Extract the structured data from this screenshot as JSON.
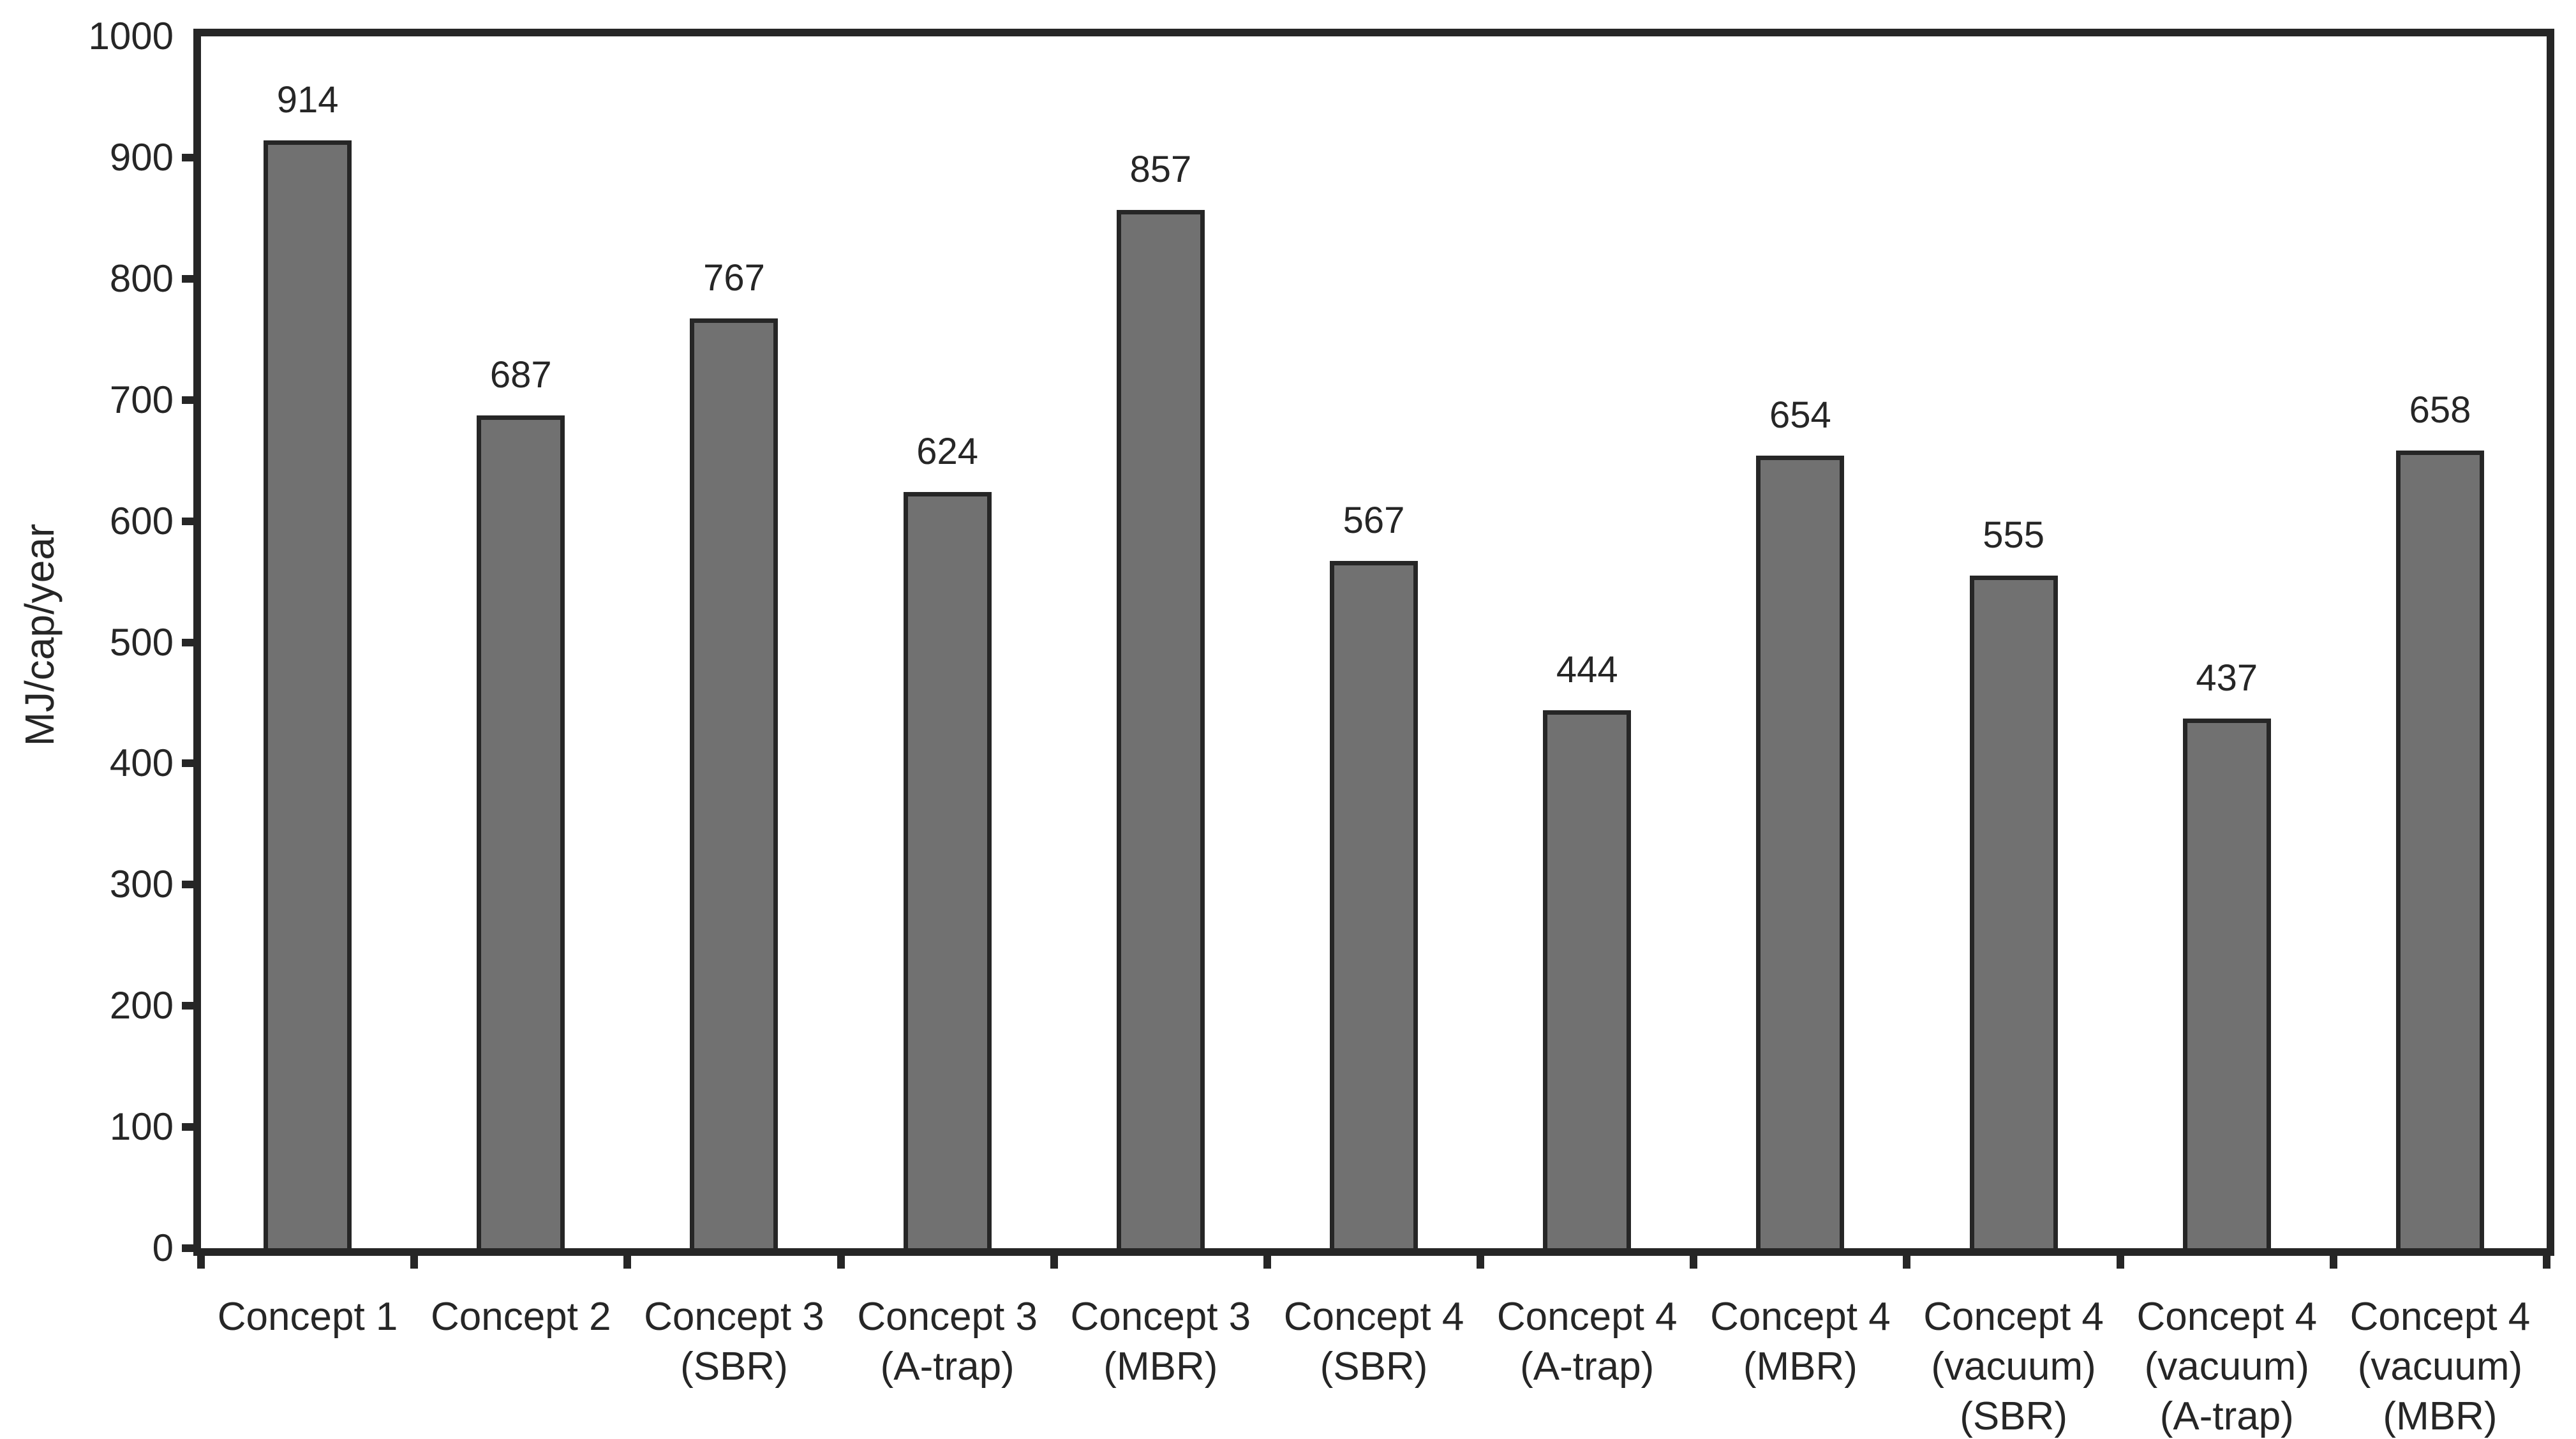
{
  "chart_data": {
    "type": "bar",
    "title": "",
    "xlabel": "",
    "ylabel": "MJ/cap/year",
    "ylim": [
      0,
      1000
    ],
    "ytick_step": 100,
    "yticks": [
      0,
      100,
      200,
      300,
      400,
      500,
      600,
      700,
      800,
      900,
      1000
    ],
    "categories": [
      [
        "Concept 1"
      ],
      [
        "Concept 2"
      ],
      [
        "Concept 3",
        "(SBR)"
      ],
      [
        "Concept 3",
        "(A-trap)"
      ],
      [
        "Concept 3",
        "(MBR)"
      ],
      [
        "Concept 4",
        "(SBR)"
      ],
      [
        "Concept 4",
        "(A-trap)"
      ],
      [
        "Concept 4",
        "(MBR)"
      ],
      [
        "Concept 4",
        "(vacuum)",
        "(SBR)"
      ],
      [
        "Concept 4",
        "(vacuum)",
        "(A-trap)"
      ],
      [
        "Concept 4",
        "(vacuum)",
        "(MBR)"
      ]
    ],
    "values": [
      914,
      687,
      767,
      624,
      857,
      567,
      444,
      654,
      555,
      437,
      658
    ],
    "data_labels_shown": true,
    "grid": false,
    "legend": null,
    "colors": {
      "bar_fill": "#717171",
      "bar_border": "#262626",
      "axis": "#262626",
      "text": "#262626",
      "background": "#ffffff"
    }
  }
}
